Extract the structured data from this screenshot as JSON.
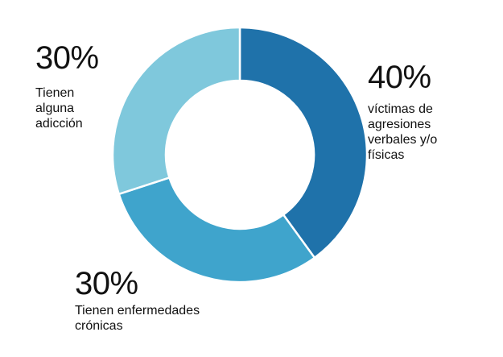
{
  "chart_data": {
    "type": "pie",
    "donut": true,
    "title": "",
    "categories": [
      "víctimas de\nagresiones\nverbales y/o\nfísicas",
      "Tienen enfermedades\ncrónicas",
      "Tienen\nalguna\nadicción"
    ],
    "values": [
      40,
      30,
      30
    ],
    "percent_labels": [
      "40%",
      "30%",
      "30%"
    ],
    "colors": [
      "#1f72aa",
      "#3fa4cc",
      "#7fc8dc"
    ],
    "legend": "none"
  }
}
